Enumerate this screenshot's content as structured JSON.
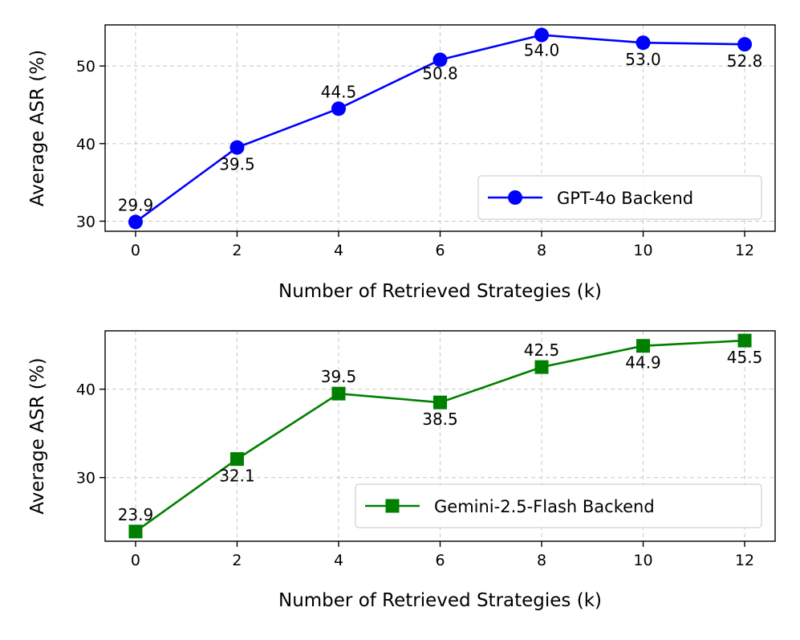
{
  "chart_data": [
    {
      "type": "line",
      "xlabel": "Number of Retrieved Strategies (k)",
      "ylabel": "Average ASR (%)",
      "x": [
        0,
        2,
        4,
        6,
        8,
        10,
        12
      ],
      "xticks": [
        "0",
        "2",
        "4",
        "6",
        "8",
        "10",
        "12"
      ],
      "yticks": [
        "30",
        "40",
        "50"
      ],
      "xlim": [
        -0.6,
        12.6
      ],
      "ylim": [
        28.7,
        55.3
      ],
      "grid": true,
      "legend_position": "lower-right",
      "series": [
        {
          "name": "GPT-4o Backend",
          "color": "#0000ff",
          "marker": "circle",
          "values": [
            29.9,
            39.5,
            44.5,
            50.8,
            54.0,
            53.0,
            52.8
          ],
          "labels": [
            "29.9",
            "39.5",
            "44.5",
            "50.8",
            "54.0",
            "53.0",
            "52.8"
          ]
        }
      ]
    },
    {
      "type": "line",
      "xlabel": "Number of Retrieved Strategies (k)",
      "ylabel": "Average ASR (%)",
      "x": [
        0,
        2,
        4,
        6,
        8,
        10,
        12
      ],
      "xticks": [
        "0",
        "2",
        "4",
        "6",
        "8",
        "10",
        "12"
      ],
      "yticks": [
        "30",
        "40"
      ],
      "xlim": [
        -0.6,
        12.6
      ],
      "ylim": [
        22.8,
        46.6
      ],
      "grid": true,
      "legend_position": "lower-right",
      "series": [
        {
          "name": "Gemini-2.5-Flash Backend",
          "color": "#008000",
          "marker": "square",
          "values": [
            23.9,
            32.1,
            39.5,
            38.5,
            42.5,
            44.9,
            45.5
          ],
          "labels": [
            "23.9",
            "32.1",
            "39.5",
            "38.5",
            "42.5",
            "44.9",
            "45.5"
          ]
        }
      ]
    }
  ]
}
